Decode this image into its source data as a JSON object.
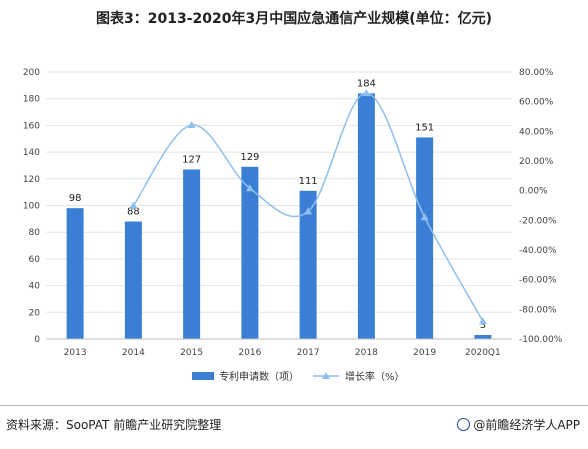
{
  "title": "图表3：2013-2020年3月中国应急通信产业规模(单位：亿元)",
  "source": "资料来源：SooPAT 前瞻产业研究院整理",
  "brand": "@前瞻经济学人APP",
  "colors": {
    "bar": "#3a7fd5",
    "line": "#8fbfee",
    "grid": "#e4e4e4"
  },
  "chart_data": {
    "type": "bar+line",
    "categories": [
      "2013",
      "2014",
      "2015",
      "2016",
      "2017",
      "2018",
      "2019",
      "2020Q1"
    ],
    "series": [
      {
        "name": "专利申请数（项）",
        "type": "bar",
        "axis": "left",
        "values": [
          98,
          88,
          127,
          129,
          111,
          184,
          151,
          3
        ],
        "labels": [
          "98",
          "88",
          "127",
          "129",
          "111",
          "184",
          "151",
          "3"
        ]
      },
      {
        "name": "增长率（%）",
        "type": "line",
        "axis": "right",
        "values": [
          null,
          -10.2,
          44.3,
          1.6,
          -14.0,
          65.8,
          -17.9,
          -88.0
        ]
      }
    ],
    "left_axis": {
      "ylim": [
        0,
        200
      ],
      "ticks": [
        "0",
        "20",
        "40",
        "60",
        "80",
        "100",
        "120",
        "140",
        "160",
        "180",
        "200"
      ]
    },
    "right_axis": {
      "ylim": [
        -100,
        80
      ],
      "ticks": [
        "-100.00%",
        "-80.00%",
        "-60.00%",
        "-40.00%",
        "-20.00%",
        "0.00%",
        "20.00%",
        "40.00%",
        "60.00%",
        "80.00%"
      ]
    },
    "legend_position": "bottom"
  }
}
